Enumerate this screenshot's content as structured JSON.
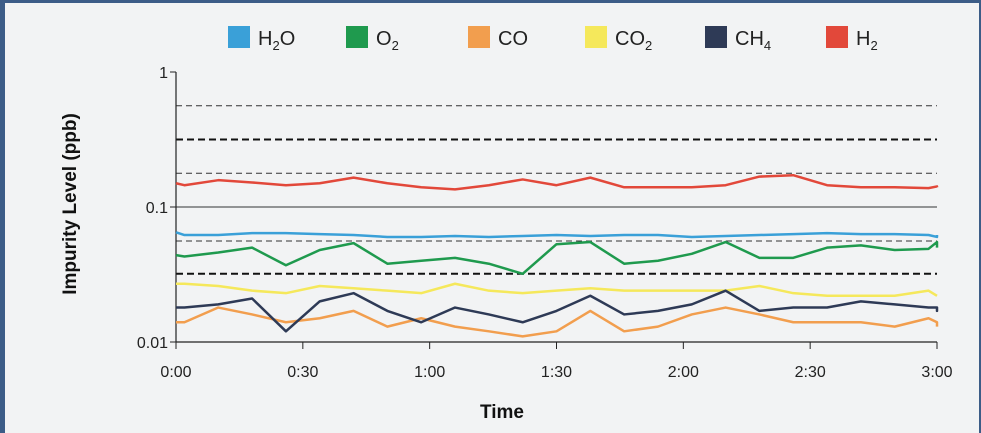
{
  "chart_data": {
    "type": "line",
    "title": "",
    "xlabel": "Time",
    "ylabel": "Impurity Level (ppb)",
    "y_scale": "log",
    "ylim": [
      0.01,
      1
    ],
    "y_ticks": [
      {
        "value": 0.01,
        "label": "0.01"
      },
      {
        "value": 0.1,
        "label": "0.1"
      },
      {
        "value": 1,
        "label": "1"
      }
    ],
    "xlim": [
      0,
      180
    ],
    "x_ticks": [
      {
        "value": 0,
        "label": "0:00"
      },
      {
        "value": 30,
        "label": "0:30"
      },
      {
        "value": 60,
        "label": "1:00"
      },
      {
        "value": 90,
        "label": "1:30"
      },
      {
        "value": 120,
        "label": "2:00"
      },
      {
        "value": 150,
        "label": "2:30"
      },
      {
        "value": 180,
        "label": "3:00"
      }
    ],
    "x_minutes": [
      0,
      2,
      10,
      18,
      26,
      34,
      42,
      50,
      58,
      66,
      74,
      82,
      90,
      98,
      106,
      114,
      122,
      130,
      138,
      146,
      154,
      162,
      170,
      178,
      186,
      194,
      200
    ],
    "legend_position": "top",
    "grid": {
      "solid_y": [
        0.1
      ],
      "dashed_y": [
        0.032,
        0.056,
        0.178,
        0.316,
        0.562
      ],
      "dashed_emphasis_y": [
        0.032,
        0.316
      ]
    },
    "series": [
      {
        "name": "H2O",
        "label_base": "H",
        "label_sub": "2",
        "label_tail": "O",
        "color": "#3aa0d8",
        "values": [
          0.065,
          0.062,
          0.062,
          0.064,
          0.064,
          0.063,
          0.062,
          0.06,
          0.06,
          0.061,
          0.06,
          0.061,
          0.062,
          0.061,
          0.062,
          0.062,
          0.06,
          0.061,
          0.062,
          0.063,
          0.064,
          0.063,
          0.063,
          0.062,
          0.06,
          0.062,
          0.062
        ]
      },
      {
        "name": "O2",
        "label_base": "O",
        "label_sub": "2",
        "label_tail": "",
        "color": "#1f9a4e",
        "values": [
          0.044,
          0.043,
          0.046,
          0.05,
          0.037,
          0.048,
          0.054,
          0.038,
          0.04,
          0.042,
          0.038,
          0.032,
          0.053,
          0.055,
          0.038,
          0.04,
          0.045,
          0.055,
          0.042,
          0.042,
          0.05,
          0.052,
          0.048,
          0.049,
          0.055,
          0.053,
          0.05
        ]
      },
      {
        "name": "CO",
        "label_base": "CO",
        "label_sub": "",
        "label_tail": "",
        "color": "#f29e4e",
        "values": [
          0.014,
          0.014,
          0.018,
          0.016,
          0.014,
          0.015,
          0.017,
          0.013,
          0.015,
          0.013,
          0.012,
          0.011,
          0.012,
          0.017,
          0.012,
          0.013,
          0.016,
          0.018,
          0.016,
          0.014,
          0.014,
          0.014,
          0.013,
          0.015,
          0.014,
          0.013,
          0.013
        ]
      },
      {
        "name": "CO2",
        "label_base": "CO",
        "label_sub": "2",
        "label_tail": "",
        "color": "#f5e85b",
        "values": [
          0.027,
          0.027,
          0.026,
          0.024,
          0.023,
          0.026,
          0.025,
          0.024,
          0.023,
          0.027,
          0.024,
          0.023,
          0.024,
          0.025,
          0.024,
          0.024,
          0.024,
          0.024,
          0.026,
          0.023,
          0.022,
          0.022,
          0.022,
          0.024,
          0.022,
          0.022,
          0.022
        ]
      },
      {
        "name": "CH4",
        "label_base": "CH",
        "label_sub": "4",
        "label_tail": "",
        "color": "#2e3a56",
        "values": [
          0.018,
          0.018,
          0.019,
          0.021,
          0.012,
          0.02,
          0.023,
          0.017,
          0.014,
          0.018,
          0.016,
          0.014,
          0.017,
          0.022,
          0.016,
          0.017,
          0.019,
          0.024,
          0.017,
          0.018,
          0.018,
          0.02,
          0.019,
          0.018,
          0.018,
          0.017,
          0.018
        ]
      },
      {
        "name": "H2",
        "label_base": "H",
        "label_sub": "2",
        "label_tail": "",
        "color": "#e2483a",
        "values": [
          0.15,
          0.145,
          0.158,
          0.152,
          0.145,
          0.15,
          0.165,
          0.15,
          0.14,
          0.135,
          0.145,
          0.16,
          0.145,
          0.165,
          0.14,
          0.14,
          0.14,
          0.145,
          0.168,
          0.172,
          0.145,
          0.14,
          0.14,
          0.138,
          0.142,
          0.14,
          0.14
        ]
      }
    ]
  }
}
